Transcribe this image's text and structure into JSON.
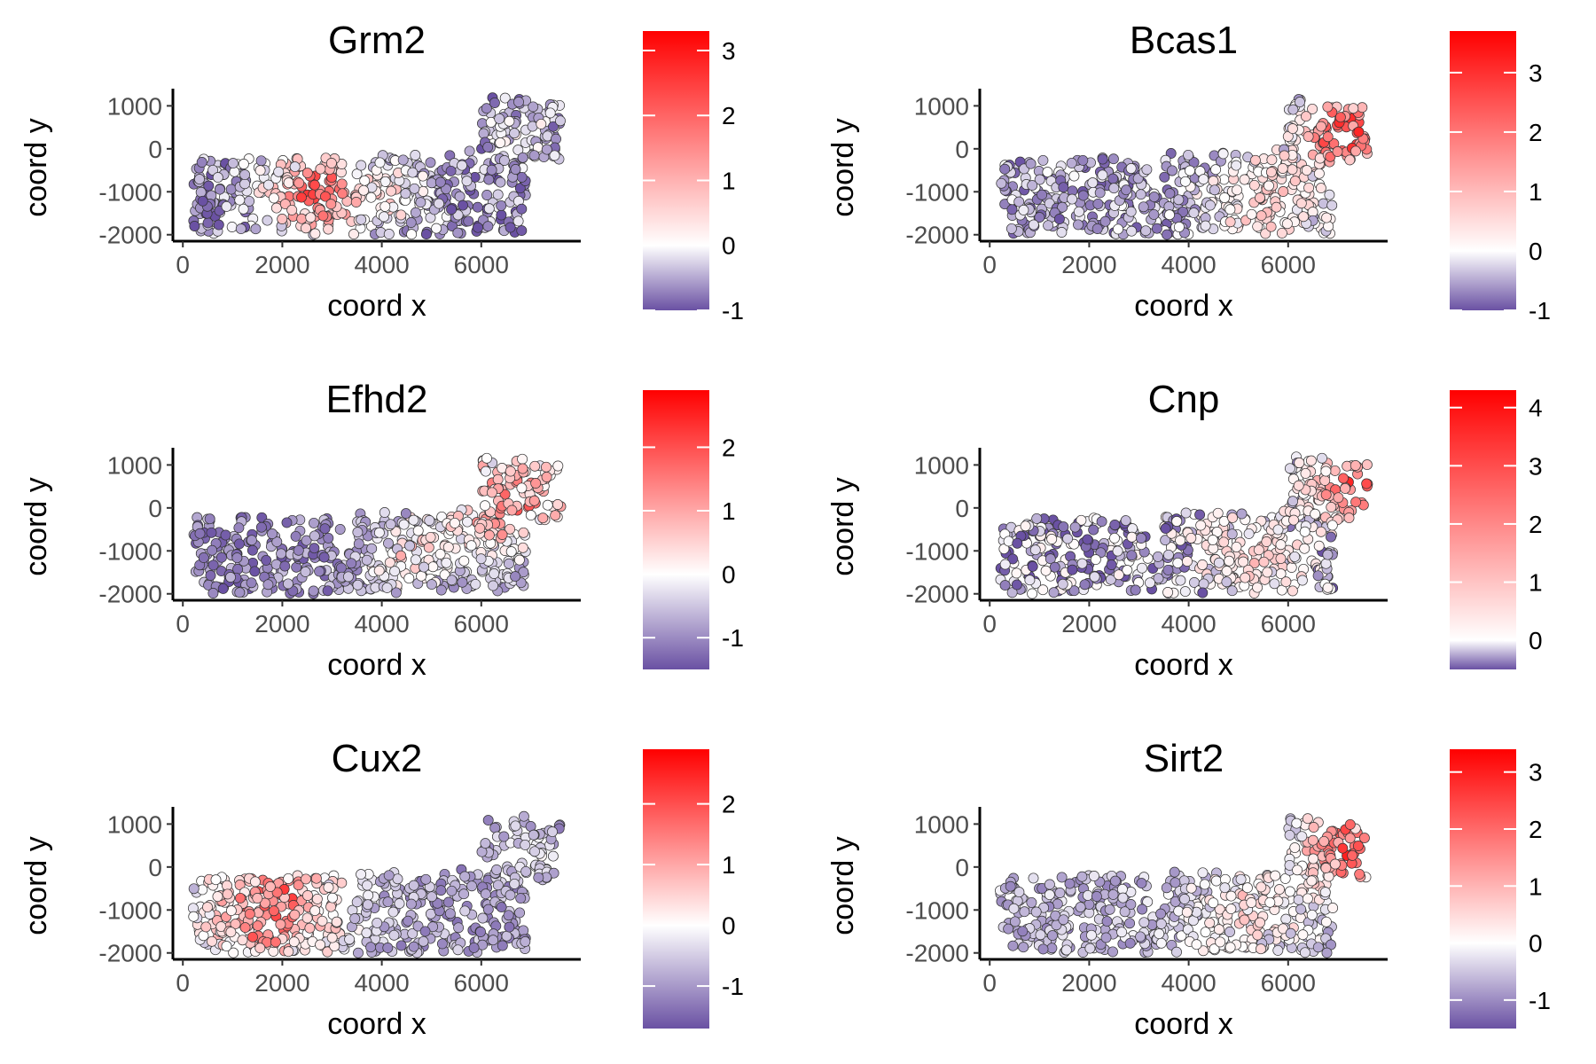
{
  "chart_data": [
    {
      "type": "scatter",
      "title": "Grm2",
      "xlabel": "coord x",
      "ylabel": "coord y",
      "x_ticks": [
        0,
        2000,
        4000,
        6000
      ],
      "y_ticks": [
        1000,
        0,
        -1000,
        -2000
      ],
      "xlim": [
        -200,
        8000
      ],
      "ylim": [
        -2150,
        1400
      ],
      "color_scale": {
        "low": "#6a51a3",
        "mid": "#ffffff",
        "high": "#ff0000",
        "min": -1,
        "max": 3.3,
        "ticks": [
          3,
          2,
          1,
          0,
          -1
        ]
      },
      "hotspots": [
        {
          "x": 2600,
          "y": -1000,
          "r": 900,
          "strength": 2.6
        },
        {
          "x": 4200,
          "y": -1100,
          "r": 700,
          "strength": 1.0
        },
        {
          "x": 6800,
          "y": 300,
          "r": 600,
          "strength": 0.6
        }
      ],
      "baseline": -0.6,
      "seed": 11
    },
    {
      "type": "scatter",
      "title": "Bcas1",
      "xlabel": "coord x",
      "ylabel": "coord y",
      "x_ticks": [
        0,
        2000,
        4000,
        6000
      ],
      "y_ticks": [
        1000,
        0,
        -1000,
        -2000
      ],
      "xlim": [
        -200,
        8000
      ],
      "ylim": [
        -2150,
        1400
      ],
      "color_scale": {
        "low": "#6a51a3",
        "mid": "#ffffff",
        "high": "#ff0000",
        "min": -1,
        "max": 3.7,
        "ticks": [
          3,
          2,
          1,
          0,
          -1
        ]
      },
      "hotspots": [
        {
          "x": 7200,
          "y": 400,
          "r": 900,
          "strength": 3.0
        },
        {
          "x": 5500,
          "y": -1200,
          "r": 1200,
          "strength": 1.1
        }
      ],
      "baseline": -0.5,
      "seed": 23
    },
    {
      "type": "scatter",
      "title": "Efhd2",
      "xlabel": "coord x",
      "ylabel": "coord y",
      "x_ticks": [
        0,
        2000,
        4000,
        6000
      ],
      "y_ticks": [
        1000,
        0,
        -1000,
        -2000
      ],
      "xlim": [
        -200,
        8000
      ],
      "ylim": [
        -2150,
        1400
      ],
      "color_scale": {
        "low": "#6a51a3",
        "mid": "#ffffff",
        "high": "#ff0000",
        "min": -1.5,
        "max": 2.9,
        "ticks": [
          2,
          1,
          0,
          -1
        ]
      },
      "hotspots": [
        {
          "x": 6600,
          "y": 200,
          "r": 1400,
          "strength": 2.3
        },
        {
          "x": 4500,
          "y": -1200,
          "r": 1000,
          "strength": 1.2
        }
      ],
      "baseline": -1.0,
      "seed": 37
    },
    {
      "type": "scatter",
      "title": "Cnp",
      "xlabel": "coord x",
      "ylabel": "coord y",
      "x_ticks": [
        0,
        2000,
        4000,
        6000
      ],
      "y_ticks": [
        1000,
        0,
        -1000,
        -2000
      ],
      "xlim": [
        -200,
        8000
      ],
      "ylim": [
        -2150,
        1400
      ],
      "color_scale": {
        "low": "#6a51a3",
        "mid": "#ffffff",
        "high": "#ff0000",
        "min": -0.5,
        "max": 4.3,
        "ticks": [
          4,
          3,
          2,
          1,
          0
        ]
      },
      "hotspots": [
        {
          "x": 7300,
          "y": 400,
          "r": 700,
          "strength": 3.0
        },
        {
          "x": 5300,
          "y": -1200,
          "r": 1100,
          "strength": 0.9
        }
      ],
      "baseline": -0.2,
      "seed": 51
    },
    {
      "type": "scatter",
      "title": "Cux2",
      "xlabel": "coord x",
      "ylabel": "coord y",
      "x_ticks": [
        0,
        2000,
        4000,
        6000
      ],
      "y_ticks": [
        1000,
        0,
        -1000,
        -2000
      ],
      "xlim": [
        -200,
        8000
      ],
      "ylim": [
        -2150,
        1400
      ],
      "color_scale": {
        "low": "#6a51a3",
        "mid": "#ffffff",
        "high": "#ff0000",
        "min": -1.7,
        "max": 2.9,
        "ticks": [
          2,
          1,
          0,
          -1
        ]
      },
      "hotspots": [
        {
          "x": 1800,
          "y": -1000,
          "r": 1500,
          "strength": 2.4
        },
        {
          "x": 7000,
          "y": 300,
          "r": 500,
          "strength": 0.8
        }
      ],
      "baseline": -0.9,
      "seed": 67
    },
    {
      "type": "scatter",
      "title": "Sirt2",
      "xlabel": "coord x",
      "ylabel": "coord y",
      "x_ticks": [
        0,
        2000,
        4000,
        6000
      ],
      "y_ticks": [
        1000,
        0,
        -1000,
        -2000
      ],
      "xlim": [
        -200,
        8000
      ],
      "ylim": [
        -2150,
        1400
      ],
      "color_scale": {
        "low": "#6a51a3",
        "mid": "#ffffff",
        "high": "#ff0000",
        "min": -1.5,
        "max": 3.4,
        "ticks": [
          3,
          2,
          1,
          0,
          -1
        ]
      },
      "hotspots": [
        {
          "x": 7200,
          "y": 400,
          "r": 900,
          "strength": 2.8
        },
        {
          "x": 5200,
          "y": -1100,
          "r": 1200,
          "strength": 1.0
        }
      ],
      "baseline": -0.6,
      "seed": 79
    }
  ]
}
